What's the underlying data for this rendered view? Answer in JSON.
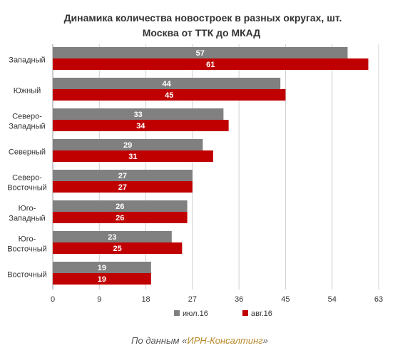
{
  "chart_data": {
    "type": "bar",
    "orientation": "horizontal",
    "title": "Динамика количества новостроек в разных округах, шт.",
    "subtitle": "Москва от ТТК до МКАД",
    "categories": [
      [
        "Западный"
      ],
      [
        "Южный"
      ],
      [
        "Северо-",
        "Западный"
      ],
      [
        "Северный"
      ],
      [
        "Северо-",
        "Восточный"
      ],
      [
        "Юго-",
        "Западный"
      ],
      [
        "Юго-",
        "Восточный"
      ],
      [
        "Восточный"
      ]
    ],
    "series": [
      {
        "name": "июл.16",
        "color": "#808080",
        "values": [
          57,
          44,
          33,
          29,
          27,
          26,
          23,
          19
        ]
      },
      {
        "name": "авг.16",
        "color": "#c00000",
        "values": [
          61,
          45,
          34,
          31,
          27,
          26,
          25,
          19
        ]
      }
    ],
    "xlim": [
      0,
      63
    ],
    "xticks": [
      0,
      9,
      18,
      27,
      36,
      45,
      54,
      63
    ],
    "grid": true,
    "legend_position": "bottom"
  },
  "footer": {
    "prefix": "По данным «",
    "source": "ИРН-Консалтинг",
    "suffix": "»"
  }
}
